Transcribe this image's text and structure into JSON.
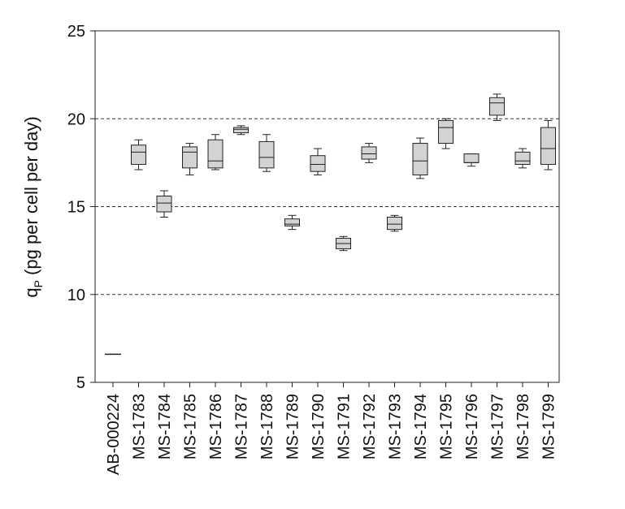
{
  "chart_data": {
    "type": "box",
    "title": "",
    "xlabel": "",
    "ylabel": "q",
    "ylabel_subscript": "P",
    "ylabel_rest": " (pg per cell per day)",
    "ylim": [
      5,
      25
    ],
    "yticks": [
      "5",
      "10",
      "15",
      "20",
      "25"
    ],
    "grid": {
      "dashed_y": [
        10,
        15,
        20
      ]
    },
    "categories": [
      "AB-000224",
      "MS-1783",
      "MS-1784",
      "MS-1785",
      "MS-1786",
      "MS-1787",
      "MS-1788",
      "MS-1789",
      "MS-1790",
      "MS-1791",
      "MS-1792",
      "MS-1793",
      "MS-1794",
      "MS-1795",
      "MS-1796",
      "MS-1797",
      "MS-1798",
      "MS-1799"
    ],
    "boxes": [
      {
        "min": 6.6,
        "q1": 6.6,
        "median": 6.6,
        "q3": 6.6,
        "max": 6.6
      },
      {
        "min": 17.1,
        "q1": 17.4,
        "median": 18.1,
        "q3": 18.5,
        "max": 18.8
      },
      {
        "min": 14.4,
        "q1": 14.7,
        "median": 15.2,
        "q3": 15.6,
        "max": 15.9
      },
      {
        "min": 16.8,
        "q1": 17.2,
        "median": 18.1,
        "q3": 18.4,
        "max": 18.6
      },
      {
        "min": 17.1,
        "q1": 17.2,
        "median": 17.6,
        "q3": 18.8,
        "max": 19.1
      },
      {
        "min": 19.1,
        "q1": 19.2,
        "median": 19.4,
        "q3": 19.5,
        "max": 19.6
      },
      {
        "min": 17.0,
        "q1": 17.2,
        "median": 17.8,
        "q3": 18.7,
        "max": 19.1
      },
      {
        "min": 13.7,
        "q1": 13.9,
        "median": 14.0,
        "q3": 14.3,
        "max": 14.5
      },
      {
        "min": 16.8,
        "q1": 17.0,
        "median": 17.4,
        "q3": 17.9,
        "max": 18.3
      },
      {
        "min": 12.5,
        "q1": 12.6,
        "median": 12.9,
        "q3": 13.2,
        "max": 13.3
      },
      {
        "min": 17.5,
        "q1": 17.7,
        "median": 18.0,
        "q3": 18.4,
        "max": 18.6
      },
      {
        "min": 13.6,
        "q1": 13.7,
        "median": 14.0,
        "q3": 14.4,
        "max": 14.5
      },
      {
        "min": 16.6,
        "q1": 16.8,
        "median": 17.6,
        "q3": 18.6,
        "max": 18.9
      },
      {
        "min": 18.3,
        "q1": 18.6,
        "median": 19.5,
        "q3": 19.9,
        "max": 20.0
      },
      {
        "min": 17.3,
        "q1": 17.5,
        "median": 17.5,
        "q3": 18.0,
        "max": 18.0
      },
      {
        "min": 19.9,
        "q1": 20.2,
        "median": 20.9,
        "q3": 21.2,
        "max": 21.4
      },
      {
        "min": 17.2,
        "q1": 17.4,
        "median": 17.6,
        "q3": 18.1,
        "max": 18.3
      },
      {
        "min": 17.1,
        "q1": 17.4,
        "median": 18.3,
        "q3": 19.5,
        "max": 19.9
      }
    ],
    "colors": {
      "box_fill": "#d3d3d3",
      "stroke": "#222222"
    }
  }
}
